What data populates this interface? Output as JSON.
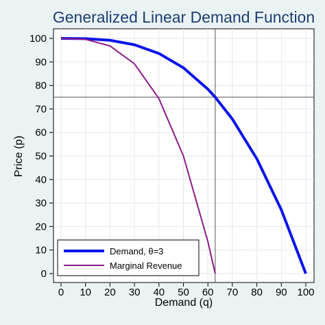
{
  "chart_data": {
    "type": "line",
    "title": "Generalized Linear Demand Function",
    "xlabel": "Demand (q)",
    "ylabel": "Price (p)",
    "xlim": [
      0,
      100
    ],
    "ylim": [
      0,
      100
    ],
    "x_ticks": [
      0,
      10,
      20,
      30,
      40,
      50,
      60,
      70,
      80,
      90,
      100
    ],
    "y_ticks": [
      0,
      10,
      20,
      30,
      40,
      50,
      60,
      70,
      80,
      90,
      100
    ],
    "grid": true,
    "legend_position": "bottom-left",
    "reference_lines": {
      "x": 62.996,
      "y": 75
    },
    "series": [
      {
        "name": "Demand, θ=3",
        "color": "#0a14ea",
        "x": [
          0,
          10,
          20,
          30,
          40,
          50,
          60,
          62.996,
          70,
          80,
          90,
          100
        ],
        "y": [
          100,
          99.9,
          99.2,
          97.3,
          93.6,
          87.5,
          78.4,
          75,
          65.7,
          48.8,
          27.1,
          0
        ]
      },
      {
        "name": "Marginal Revenue",
        "color": "#8b1a8b",
        "x": [
          0,
          10,
          20,
          30,
          40,
          50,
          60,
          62.996
        ],
        "y": [
          100,
          99.6,
          96.8,
          89.2,
          74.4,
          50.0,
          13.6,
          0
        ]
      }
    ]
  }
}
